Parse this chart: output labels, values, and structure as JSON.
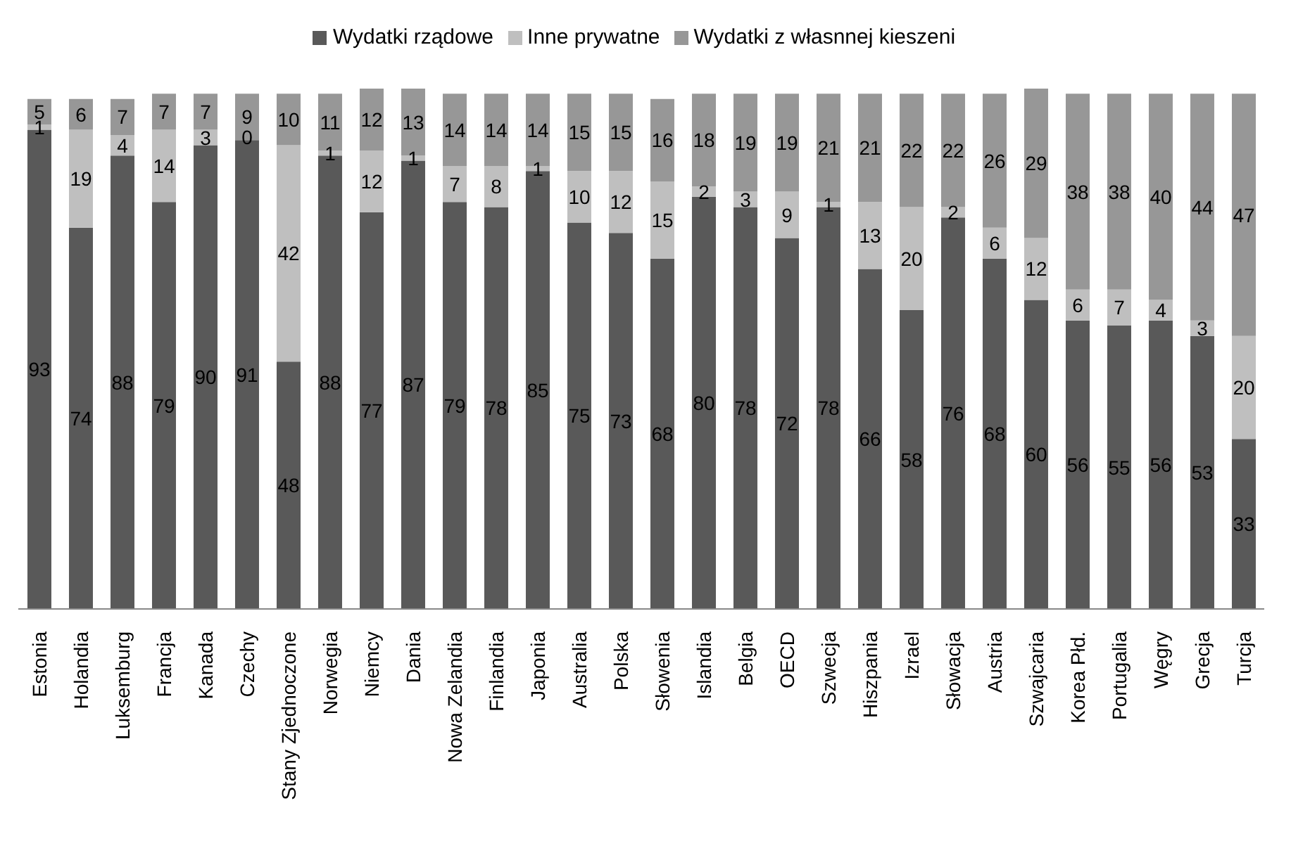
{
  "chart_data": {
    "type": "bar",
    "stacked": true,
    "data_labels": true,
    "legend": "top",
    "grid": false,
    "tick_labels": "x",
    "categories": [
      "Estonia",
      "Holandia",
      "Luksemburg",
      "Francja",
      "Kanada",
      "Czechy",
      "Stany Zjednoczone",
      "Norwegia",
      "Niemcy",
      "Dania",
      "Nowa Zelandia",
      "Finlandia",
      "Japonia",
      "Australia",
      "Polska",
      "Słowenia",
      "Islandia",
      "Belgia",
      "OECD",
      "Szwecja",
      "Hiszpania",
      "Izrael",
      "Słowacja",
      "Austria",
      "Szwajcaria",
      "Korea Płd.",
      "Portugalia",
      "Węgry",
      "Grecja",
      "Turcja"
    ],
    "series": [
      {
        "name": "Wydatki rządowe",
        "color": "#595959",
        "values": [
          93,
          74,
          88,
          79,
          90,
          91,
          48,
          88,
          77,
          87,
          79,
          78,
          85,
          75,
          73,
          68,
          80,
          78,
          72,
          78,
          66,
          58,
          76,
          68,
          60,
          56,
          55,
          56,
          53,
          33
        ]
      },
      {
        "name": "Inne prywatne",
        "color": "#bfbfbf",
        "values": [
          1,
          19,
          4,
          14,
          3,
          0,
          42,
          1,
          12,
          1,
          7,
          8,
          1,
          10,
          12,
          15,
          2,
          3,
          9,
          1,
          13,
          20,
          2,
          6,
          12,
          6,
          7,
          4,
          3,
          20
        ]
      },
      {
        "name": "Wydatki z własnnej kieszeni",
        "color": "#979797",
        "values": [
          5,
          6,
          7,
          7,
          7,
          9,
          10,
          11,
          12,
          13,
          14,
          14,
          14,
          15,
          15,
          16,
          18,
          19,
          19,
          21,
          21,
          22,
          22,
          26,
          29,
          38,
          38,
          40,
          44,
          47
        ]
      }
    ]
  }
}
